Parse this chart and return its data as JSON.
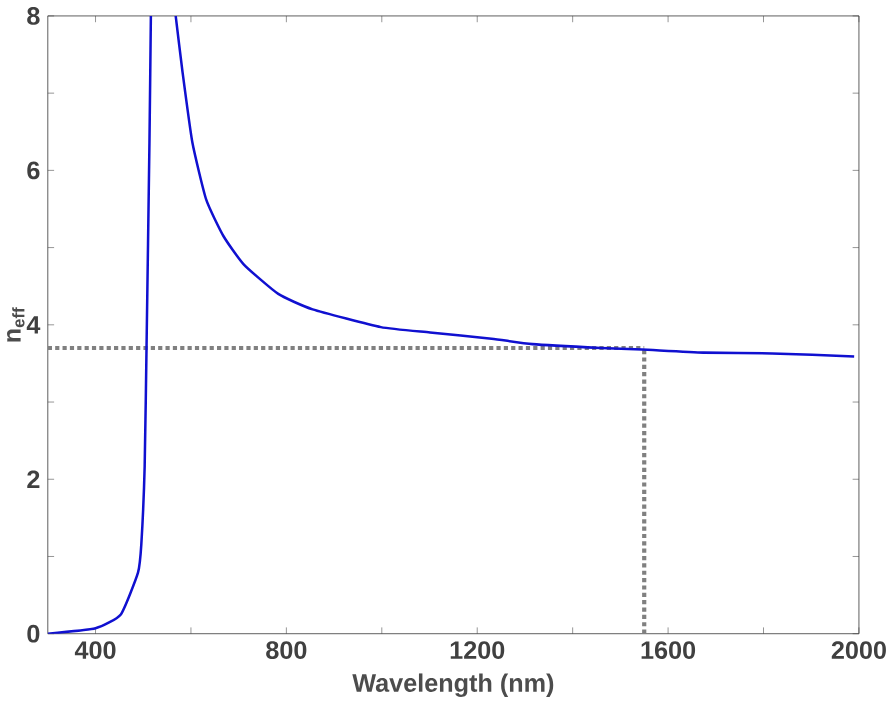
{
  "chart_data": {
    "type": "line",
    "xlabel": "Wavelength (nm)",
    "ylabel": "n$_{eff}$",
    "xlim": [
      300,
      2000
    ],
    "ylim": [
      0,
      8
    ],
    "xticks": [
      400,
      {
        "value": 600,
        "label": null
      },
      800,
      {
        "value": 1000,
        "label": null
      },
      1200,
      {
        "value": 1400,
        "label": null
      },
      1600,
      {
        "value": 1800,
        "label": null
      },
      2000
    ],
    "yticks": [
      0,
      {
        "value": 1,
        "label": null
      },
      2,
      {
        "value": 3,
        "label": null
      },
      4,
      {
        "value": 5,
        "label": null
      },
      6,
      {
        "value": 7,
        "label": null
      },
      8
    ],
    "series": [
      {
        "color": "#1010d0",
        "x": [
          300,
          400,
          453,
          489,
          496,
          503,
          507,
          513,
          516,
          null,
          568,
          582,
          603,
          632,
          668,
          711,
          783,
          855,
          998,
          1101,
          1230,
          1316,
          1459,
          1545,
          1674,
          1818,
          1990
        ],
        "values": [
          0,
          0.07,
          0.25,
          0.79,
          1.16,
          2.17,
          3.75,
          6.35,
          8,
          null,
          8,
          7.29,
          6.36,
          5.62,
          5.15,
          4.78,
          4.4,
          4.2,
          3.97,
          3.9,
          3.82,
          3.75,
          3.7,
          3.68,
          3.64,
          3.63,
          3.59
        ]
      }
    ],
    "ref_lines": [
      {
        "axis": "y",
        "value": 3.7,
        "color": "#808080",
        "line_style": "dotted"
      },
      {
        "axis": "x",
        "value": 1550,
        "color": "#808080",
        "line_style": "dotted"
      }
    ],
    "grid": false,
    "marker": "none",
    "line_style": "solid"
  }
}
